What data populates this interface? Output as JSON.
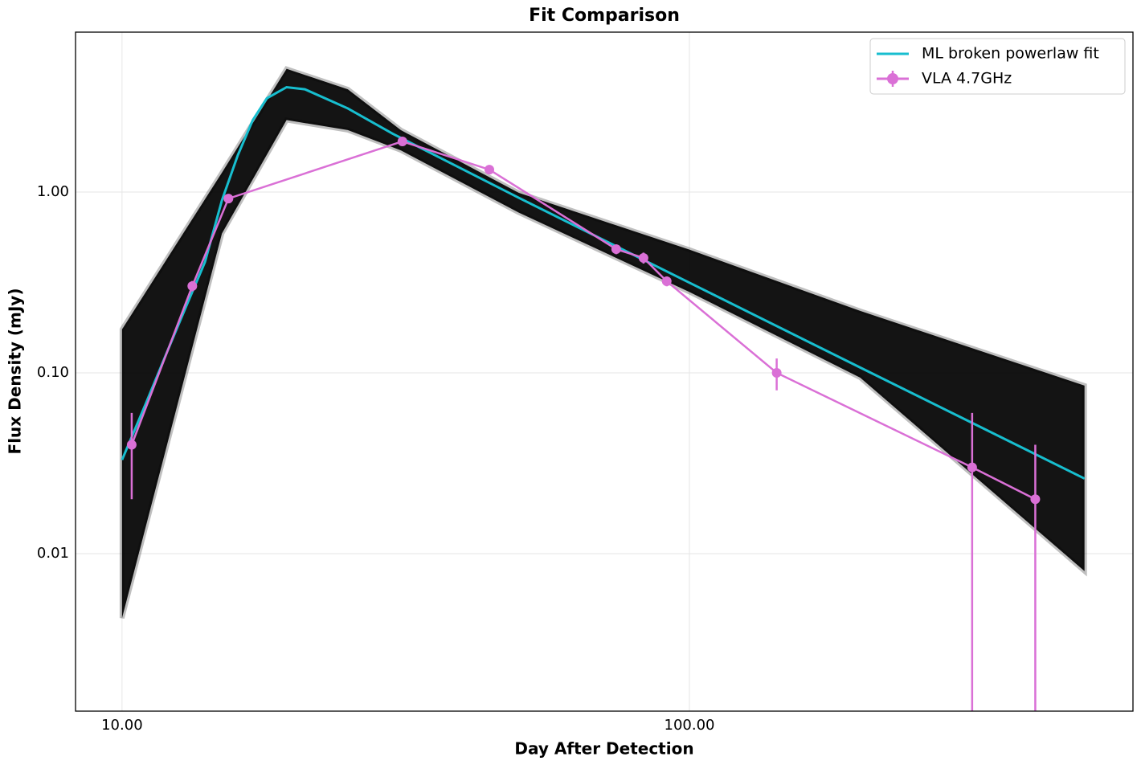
{
  "chart_data": {
    "type": "line",
    "title": "Fit Comparison",
    "xlabel": "Day After Detection",
    "ylabel": "Flux Density (mJy)",
    "xscale": "log",
    "yscale": "log",
    "xlim": [
      8.28,
      605
    ],
    "ylim": [
      0.001345,
      7.66
    ],
    "xticks": [
      {
        "value": 10,
        "label": "10.00"
      },
      {
        "value": 100,
        "label": "100.00"
      }
    ],
    "yticks": [
      0.01,
      {
        "value": 0.1,
        "label": "0.10"
      },
      {
        "value": 1,
        "label": "1.00"
      }
    ],
    "grid": true,
    "legend": "upper right",
    "band": {
      "color": "#000000",
      "x": [
        10,
        15,
        19.5,
        25,
        31,
        50,
        100,
        200,
        497
      ],
      "lower": [
        0.0044,
        0.59,
        2.5,
        2.2,
        1.7,
        0.77,
        0.28,
        0.094,
        0.008
      ],
      "upper": [
        0.174,
        1.28,
        4.8,
        3.7,
        2.2,
        0.99,
        0.48,
        0.22,
        0.085
      ]
    },
    "series": [
      {
        "name": "ML broken powerlaw fit",
        "color": "#17becf",
        "x": [
          10,
          11,
          12,
          13,
          14,
          15,
          16,
          17,
          18,
          19.5,
          21,
          25,
          30,
          50,
          100,
          200,
          300,
          497
        ],
        "values": [
          0.033,
          0.067,
          0.13,
          0.237,
          0.41,
          0.9,
          1.6,
          2.5,
          3.3,
          3.8,
          3.7,
          2.9,
          2.1,
          0.93,
          0.315,
          0.107,
          0.057,
          0.026
        ]
      },
      {
        "name": "VLA 4.7GHz",
        "color": "#da70d6",
        "marker": "o",
        "x": [
          10.4,
          13.3,
          15.4,
          31.2,
          44.4,
          74.3,
          83.0,
          91.2,
          142.5,
          315,
          407
        ],
        "values": [
          0.04,
          0.302,
          0.92,
          1.905,
          1.33,
          0.483,
          0.432,
          0.321,
          0.1,
          0.03,
          0.02
        ],
        "errors": [
          0.02,
          0.02,
          0.05,
          0.1,
          0.07,
          0.03,
          0.03,
          0.02,
          0.02,
          0.03,
          0.02
        ]
      }
    ]
  }
}
